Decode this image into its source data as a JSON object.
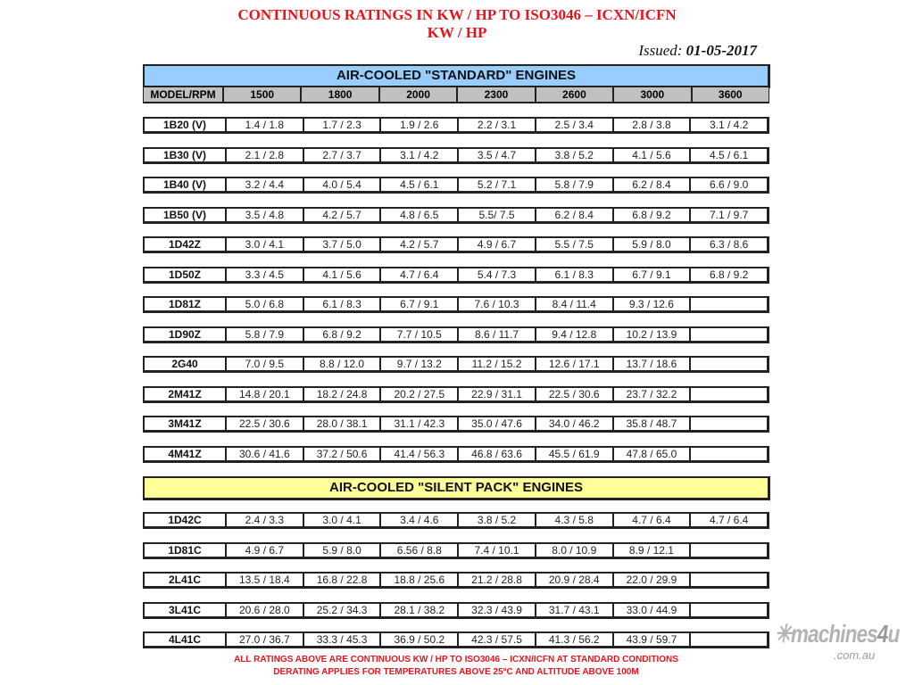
{
  "title_line1": "CONTINUOUS RATINGS IN KW / HP TO ISO3046 – ICXN/ICFN",
  "title_line2": "KW / HP",
  "issued_label": "Issued:",
  "issued_date": "01-05-2017",
  "columns": [
    "MODEL/RPM",
    "1500",
    "1800",
    "2000",
    "2300",
    "2600",
    "3000",
    "3600"
  ],
  "sections": [
    {
      "title": "AIR-COOLED \"STANDARD\" ENGINES",
      "color": "#99ccff",
      "rows": [
        {
          "model": "1B20 (V)",
          "values": [
            "1.4 / 1.8",
            "1.7 / 2.3",
            "1.9 / 2.6",
            "2.2 / 3.1",
            "2.5 / 3.4",
            "2.8 / 3.8",
            "3.1 / 4.2"
          ]
        },
        {
          "model": "1B30 (V)",
          "values": [
            "2.1 / 2.8",
            "2.7 / 3.7",
            "3.1 / 4.2",
            "3.5 / 4.7",
            "3.8 / 5.2",
            "4.1 / 5.6",
            "4.5 / 6.1"
          ]
        },
        {
          "model": "1B40 (V)",
          "values": [
            "3.2 / 4.4",
            "4.0 / 5.4",
            "4.5 / 6.1",
            "5.2 / 7.1",
            "5.8 / 7.9",
            "6.2 / 8.4",
            "6.6 / 9.0"
          ]
        },
        {
          "model": "1B50 (V)",
          "values": [
            "3.5 / 4.8",
            "4.2 / 5.7",
            "4.8 / 6.5",
            "5.5/ 7.5",
            "6.2 / 8.4",
            "6.8 / 9.2",
            "7.1 / 9.7"
          ]
        },
        {
          "model": "1D42Z",
          "values": [
            "3.0 / 4.1",
            "3.7 / 5.0",
            "4.2 / 5.7",
            "4.9 / 6.7",
            "5.5 / 7.5",
            "5.9 / 8.0",
            "6.3 / 8.6"
          ]
        },
        {
          "model": "1D50Z",
          "values": [
            "3.3 / 4.5",
            "4.1 / 5.6",
            "4.7 / 6.4",
            "5.4 / 7.3",
            "6.1 / 8.3",
            "6.7 / 9.1",
            "6.8 / 9.2"
          ]
        },
        {
          "model": "1D81Z",
          "values": [
            "5.0 / 6.8",
            "6.1 / 8.3",
            "6.7 / 9.1",
            "7.6 / 10.3",
            "8.4 / 11.4",
            "9.3 / 12.6",
            ""
          ]
        },
        {
          "model": "1D90Z",
          "values": [
            "5.8 / 7.9",
            "6.8 / 9.2",
            "7.7 / 10.5",
            "8.6 / 11.7",
            "9.4 / 12.8",
            "10.2 / 13.9",
            ""
          ]
        },
        {
          "model": "2G40",
          "values": [
            "7.0 / 9.5",
            "8.8 / 12.0",
            "9.7 / 13.2",
            "11.2 / 15.2",
            "12.6 / 17.1",
            "13.7 / 18.6",
            ""
          ]
        },
        {
          "model": "2M41Z",
          "values": [
            "14.8 / 20.1",
            "18.2 / 24.8",
            "20.2 / 27.5",
            "22.9 / 31.1",
            "22.5 / 30.6",
            "23.7 / 32.2",
            ""
          ]
        },
        {
          "model": "3M41Z",
          "values": [
            "22.5 / 30.6",
            "28.0 / 38.1",
            "31.1 / 42.3",
            "35.0 / 47.6",
            "34.0 / 46.2",
            "35.8 / 48.7",
            ""
          ]
        },
        {
          "model": "4M41Z",
          "values": [
            "30.6 / 41.6",
            "37.2 / 50.6",
            "41.4 / 56.3",
            "46.8 / 63.6",
            "45.5 / 61.9",
            "47.8 / 65.0",
            ""
          ]
        }
      ]
    },
    {
      "title": "AIR-COOLED \"SILENT PACK\" ENGINES",
      "color": "#ffff99",
      "rows": [
        {
          "model": "1D42C",
          "values": [
            "2.4 / 3.3",
            "3.0 / 4.1",
            "3.4 / 4.6",
            "3.8 / 5.2",
            "4.3 / 5.8",
            "4.7 / 6.4",
            "4.7 / 6.4"
          ]
        },
        {
          "model": "1D81C",
          "values": [
            "4.9 / 6.7",
            "5.9 / 8.0",
            "6.56 / 8.8",
            "7.4 / 10.1",
            "8.0 / 10.9",
            "8.9 / 12.1",
            ""
          ]
        },
        {
          "model": "2L41C",
          "values": [
            "13.5 / 18.4",
            "16.8 / 22.8",
            "18.8 / 25.6",
            "21.2 / 28.8",
            "20.9 / 28.4",
            "22.0 / 29.9",
            ""
          ]
        },
        {
          "model": "3L41C",
          "values": [
            "20.6 / 28.0",
            "25.2 / 34.3",
            "28.1 / 38.2",
            "32.3 / 43.9",
            "31.7 / 43.1",
            "33.0 / 44.9",
            ""
          ]
        },
        {
          "model": "4L41C",
          "values": [
            "27.0 / 36.7",
            "33.3 / 45.3",
            "36.9 / 50.2",
            "42.3 / 57.5",
            "41.3 / 56.2",
            "43.9 / 59.7",
            ""
          ]
        }
      ]
    }
  ],
  "footer_line1": "ALL RATINGS ABOVE ARE CONTINUOUS KW / HP TO ISO3046 – ICXN/ICFN AT STANDARD CONDITIONS",
  "footer_line2": "DERATING APPLIES FOR TEMPERATURES ABOVE 25°C AND ALTITUDE ABOVE 100M",
  "watermark": {
    "text": "machines4u",
    "sub": ".com.au"
  },
  "colors": {
    "title_red": "#e8141b",
    "standard_header": "#99ccff",
    "silent_header": "#ffff99",
    "column_header": "#c0c0c0"
  }
}
